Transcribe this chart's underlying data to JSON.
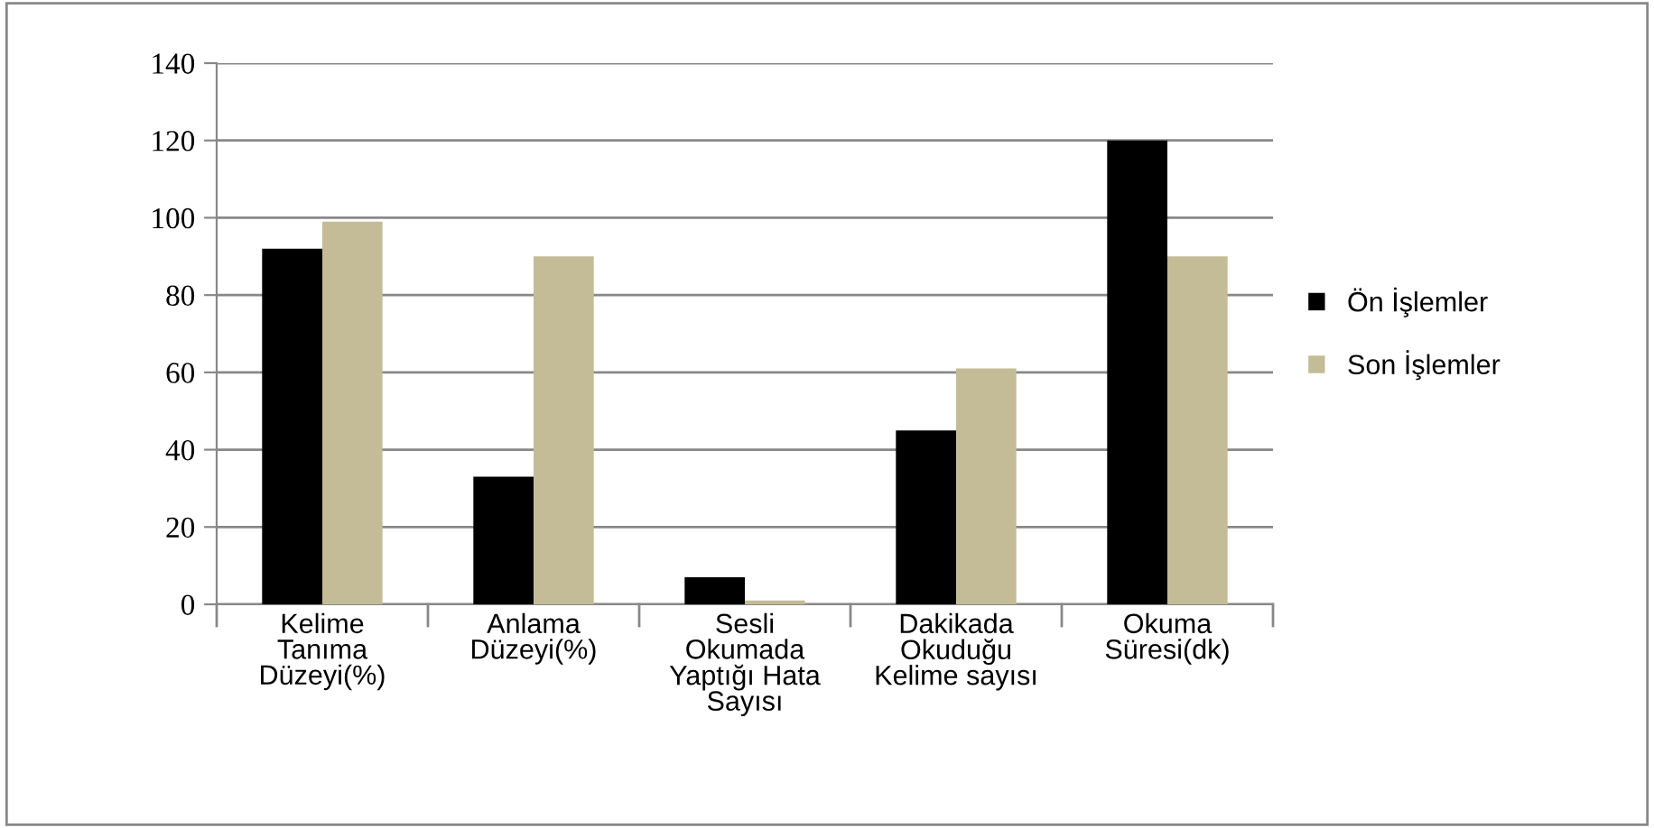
{
  "chart_data": {
    "type": "bar",
    "categories": [
      "Kelime\nTanıma\nDüzeyi(%)",
      "Anlama\nDüzeyi(%)",
      "Sesli\nOkumada\nYaptığı Hata\nSayısı",
      "Dakikada\nOkuduğu\nKelime sayısı",
      "Okuma\nSüresi(dk)"
    ],
    "series": [
      {
        "name": "Ön İşlemler",
        "color": "#000000",
        "values": [
          92,
          33,
          7,
          45,
          120
        ]
      },
      {
        "name": "Son İşlemler",
        "color": "#c4bc96",
        "values": [
          99,
          90,
          1,
          61,
          90
        ]
      }
    ],
    "ylim": [
      0,
      140
    ],
    "yticks": [
      0,
      20,
      40,
      60,
      80,
      100,
      120,
      140
    ],
    "grid": "y",
    "legend": "right"
  }
}
